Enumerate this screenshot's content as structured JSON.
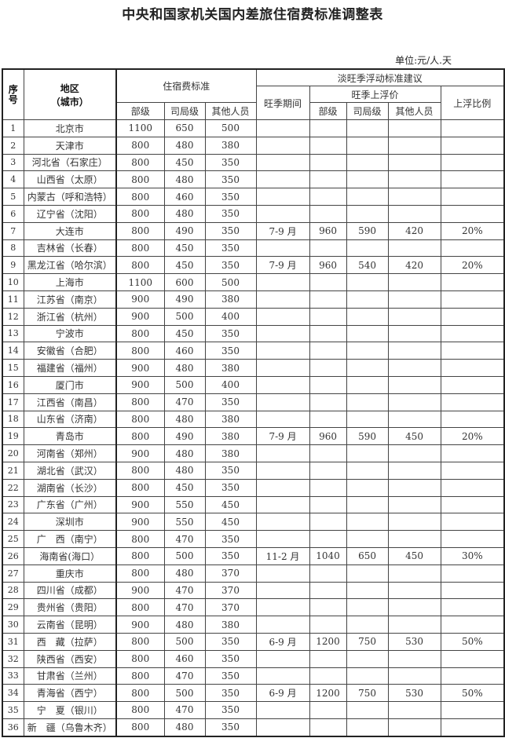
{
  "title": "中央和国家机关国内差旅住宿费标准调整表",
  "unit": "单位:元/人.天",
  "header": {
    "seq": "序号",
    "region": "地区",
    "region_sub": "（城市）",
    "standard": "住宿费标准",
    "standard_cols": [
      "部级",
      "司局级",
      "其他人员"
    ],
    "season": "淡旺季浮动标准建议",
    "peak_period": "旺季期间",
    "peak_price": "旺季上浮价",
    "peak_cols": [
      "部级",
      "司局级",
      "其他人员"
    ],
    "ratio": "上浮比例"
  },
  "rows": [
    [
      "1",
      "北京市",
      "1100",
      "650",
      "500",
      "",
      "",
      "",
      "",
      ""
    ],
    [
      "2",
      "天津市",
      "800",
      "480",
      "380",
      "",
      "",
      "",
      "",
      ""
    ],
    [
      "3",
      "河北省（石家庄）",
      "800",
      "450",
      "350",
      "",
      "",
      "",
      "",
      ""
    ],
    [
      "4",
      "山西省（太原）",
      "800",
      "480",
      "350",
      "",
      "",
      "",
      "",
      ""
    ],
    [
      "5",
      "内蒙古（呼和浩特）",
      "800",
      "460",
      "350",
      "",
      "",
      "",
      "",
      ""
    ],
    [
      "6",
      "辽宁省（沈阳）",
      "800",
      "480",
      "350",
      "",
      "",
      "",
      "",
      ""
    ],
    [
      "7",
      "大连市",
      "800",
      "490",
      "350",
      "7-9 月",
      "960",
      "590",
      "420",
      "20%"
    ],
    [
      "8",
      "吉林省（长春）",
      "800",
      "450",
      "350",
      "",
      "",
      "",
      "",
      ""
    ],
    [
      "9",
      "黑龙江省（哈尔滨）",
      "800",
      "450",
      "350",
      "7-9 月",
      "960",
      "540",
      "420",
      "20%"
    ],
    [
      "10",
      "上海市",
      "1100",
      "600",
      "500",
      "",
      "",
      "",
      "",
      ""
    ],
    [
      "11",
      "江苏省（南京）",
      "900",
      "490",
      "380",
      "",
      "",
      "",
      "",
      ""
    ],
    [
      "12",
      "浙江省（杭州）",
      "900",
      "500",
      "400",
      "",
      "",
      "",
      "",
      ""
    ],
    [
      "13",
      "宁波市",
      "800",
      "450",
      "350",
      "",
      "",
      "",
      "",
      ""
    ],
    [
      "14",
      "安徽省（合肥）",
      "800",
      "460",
      "350",
      "",
      "",
      "",
      "",
      ""
    ],
    [
      "15",
      "福建省（福州）",
      "900",
      "480",
      "380",
      "",
      "",
      "",
      "",
      ""
    ],
    [
      "16",
      "厦门市",
      "900",
      "500",
      "400",
      "",
      "",
      "",
      "",
      ""
    ],
    [
      "17",
      "江西省（南昌）",
      "800",
      "470",
      "350",
      "",
      "",
      "",
      "",
      ""
    ],
    [
      "18",
      "山东省（济南）",
      "800",
      "480",
      "380",
      "",
      "",
      "",
      "",
      ""
    ],
    [
      "19",
      "青岛市",
      "800",
      "490",
      "380",
      "7-9 月",
      "960",
      "590",
      "450",
      "20%"
    ],
    [
      "20",
      "河南省（郑州）",
      "900",
      "480",
      "380",
      "",
      "",
      "",
      "",
      ""
    ],
    [
      "21",
      "湖北省（武汉）",
      "800",
      "480",
      "350",
      "",
      "",
      "",
      "",
      ""
    ],
    [
      "22",
      "湖南省（长沙）",
      "800",
      "450",
      "350",
      "",
      "",
      "",
      "",
      ""
    ],
    [
      "23",
      "广东省（广州）",
      "900",
      "550",
      "450",
      "",
      "",
      "",
      "",
      ""
    ],
    [
      "24",
      "深圳市",
      "900",
      "550",
      "450",
      "",
      "",
      "",
      "",
      ""
    ],
    [
      "25",
      "广　西（南宁）",
      "800",
      "470",
      "350",
      "",
      "",
      "",
      "",
      ""
    ],
    [
      "26",
      "海南省(海口）",
      "800",
      "500",
      "350",
      "11-2 月",
      "1040",
      "650",
      "450",
      "30%"
    ],
    [
      "27",
      "重庆市",
      "800",
      "480",
      "370",
      "",
      "",
      "",
      "",
      ""
    ],
    [
      "28",
      "四川省（成都）",
      "900",
      "470",
      "370",
      "",
      "",
      "",
      "",
      ""
    ],
    [
      "29",
      "贵州省（贵阳）",
      "800",
      "470",
      "370",
      "",
      "",
      "",
      "",
      ""
    ],
    [
      "30",
      "云南省（昆明）",
      "900",
      "480",
      "380",
      "",
      "",
      "",
      "",
      ""
    ],
    [
      "31",
      "西　藏（拉萨）",
      "800",
      "500",
      "350",
      "6-9 月",
      "1200",
      "750",
      "530",
      "50%"
    ],
    [
      "32",
      "陕西省（西安）",
      "800",
      "460",
      "350",
      "",
      "",
      "",
      "",
      ""
    ],
    [
      "33",
      "甘肃省（兰州）",
      "800",
      "470",
      "350",
      "",
      "",
      "",
      "",
      ""
    ],
    [
      "34",
      "青海省（西宁）",
      "800",
      "500",
      "350",
      "6-9 月",
      "1200",
      "750",
      "530",
      "50%"
    ],
    [
      "35",
      "宁　夏（银川）",
      "800",
      "470",
      "350",
      "",
      "",
      "",
      "",
      ""
    ],
    [
      "36",
      "新　疆（乌鲁木齐）",
      "800",
      "480",
      "350",
      "",
      "",
      "",
      "",
      ""
    ]
  ]
}
